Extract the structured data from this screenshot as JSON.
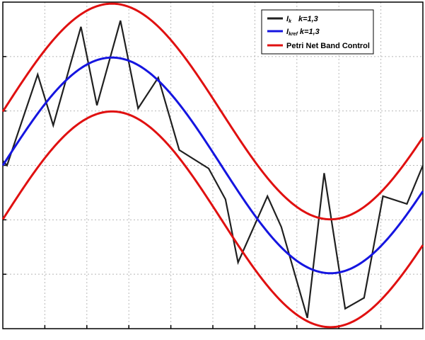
{
  "chart_data": {
    "type": "line",
    "title": "",
    "xlabel": "",
    "ylabel": "",
    "xlim": [
      0,
      1
    ],
    "ylim": [
      -1.06,
      1.06
    ],
    "grid": true,
    "legend_position": "top-right",
    "series": [
      {
        "name": "Ik    k=1,3",
        "label_main": "I",
        "label_sub": "k",
        "label_tail": "k=1,3",
        "color": "#202020",
        "style": "zigzag",
        "x": [
          0.0,
          0.01,
          0.083,
          0.12,
          0.186,
          0.224,
          0.28,
          0.322,
          0.37,
          0.42,
          0.49,
          0.53,
          0.56,
          0.63,
          0.663,
          0.725,
          0.765,
          0.815,
          0.86,
          0.905,
          0.962,
          1.0
        ],
        "y": [
          0.03,
          -0.0,
          0.59,
          0.26,
          0.9,
          0.39,
          0.94,
          0.37,
          0.57,
          0.1,
          -0.02,
          -0.22,
          -0.63,
          -0.2,
          -0.4,
          -0.99,
          -0.05,
          -0.93,
          -0.86,
          -0.2,
          -0.25,
          -0.0
        ]
      },
      {
        "name": "Ikref k=1,3",
        "label_main": "I",
        "label_sub": "kref",
        "label_tail": "k=1,3",
        "color": "#1515e0",
        "style": "sine",
        "center": 0,
        "amplitude": 0.7,
        "period": 1.04,
        "phase": 0.0
      },
      {
        "name": "Petri Net Band Control",
        "label_main": "Petri Net Band Control",
        "label_sub": "",
        "label_tail": "",
        "color": "#e01010",
        "style": "band",
        "center": 0,
        "amplitude": 0.7,
        "offset": 0.35,
        "period": 1.04,
        "phase": 0.0
      }
    ]
  }
}
